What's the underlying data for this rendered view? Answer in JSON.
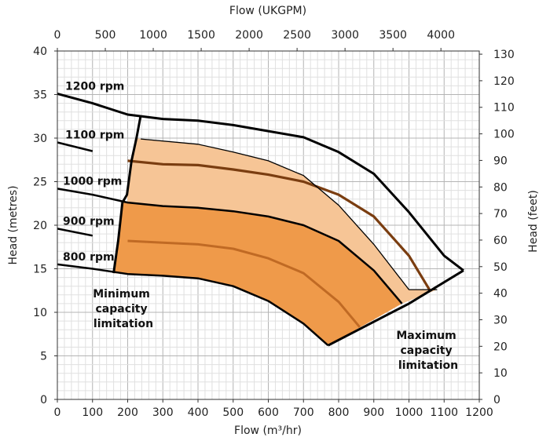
{
  "chart_data": {
    "type": "line",
    "title": "",
    "x_bottom": {
      "label": "Flow (m³/hr)",
      "range": [
        0,
        1200
      ],
      "ticks": [
        0,
        100,
        200,
        300,
        400,
        500,
        600,
        700,
        800,
        900,
        1000,
        1100,
        1200
      ]
    },
    "x_top": {
      "label": "Flow (UKGPM)",
      "range": [
        0,
        4400
      ],
      "ticks": [
        0,
        500,
        1000,
        1500,
        2000,
        2500,
        3000,
        3500,
        4000
      ]
    },
    "y_left": {
      "label": "Head (metres)",
      "range": [
        0,
        40
      ],
      "ticks": [
        0,
        5,
        10,
        15,
        20,
        25,
        30,
        35,
        40
      ]
    },
    "y_right": {
      "label": "Head (feet)",
      "range": [
        0,
        131.2
      ],
      "ticks": [
        0,
        10,
        20,
        30,
        40,
        50,
        60,
        70,
        80,
        90,
        100,
        110,
        120,
        130
      ]
    },
    "grid": true,
    "series": [
      {
        "name": "1200 rpm",
        "x": [
          0,
          100,
          200,
          300,
          400,
          500,
          600,
          700,
          800,
          900,
          1000,
          1100,
          1155
        ],
        "y": [
          35.1,
          34.0,
          32.7,
          32.2,
          32.0,
          31.5,
          30.8,
          30.1,
          28.4,
          25.9,
          21.5,
          16.5,
          14.8
        ]
      },
      {
        "name": "1100 rpm",
        "x": [
          0,
          100,
          200,
          300,
          400,
          500,
          600,
          700,
          800,
          900,
          1000,
          1060
        ],
        "y": [
          29.5,
          28.5,
          27.4,
          27.0,
          26.9,
          26.4,
          25.8,
          25.0,
          23.5,
          21.0,
          16.5,
          12.5
        ]
      },
      {
        "name": "1000 rpm",
        "x": [
          0,
          100,
          200,
          300,
          400,
          500,
          600,
          700,
          800,
          900,
          980
        ],
        "y": [
          24.2,
          23.5,
          22.6,
          22.2,
          22.0,
          21.6,
          21.0,
          20.0,
          18.2,
          14.8,
          11.0
        ]
      },
      {
        "name": "900 rpm",
        "x": [
          0,
          100,
          200,
          300,
          400,
          500,
          600,
          700,
          800,
          860
        ],
        "y": [
          19.6,
          18.8,
          18.2,
          18.0,
          17.8,
          17.3,
          16.2,
          14.5,
          11.2,
          8.3
        ]
      },
      {
        "name": "800 rpm",
        "x": [
          0,
          100,
          200,
          300,
          400,
          500,
          600,
          700,
          770
        ],
        "y": [
          15.5,
          15.0,
          14.4,
          14.2,
          13.9,
          13.0,
          11.3,
          8.7,
          6.2
        ]
      }
    ],
    "boundaries": {
      "minimum_capacity": {
        "x": [
          160,
          173,
          185,
          198,
          211,
          225,
          237
        ],
        "y": [
          14.5,
          18.2,
          22.6,
          23.5,
          27.4,
          30.0,
          32.6
        ]
      },
      "maximum_capacity": {
        "x": [
          770,
          1000,
          1155
        ],
        "y": [
          6.2,
          11.0,
          14.8
        ]
      },
      "upper_limit": {
        "x": [
          237,
          400,
          500,
          600,
          700,
          800,
          900,
          1000,
          1080
        ],
        "y": [
          29.9,
          29.3,
          28.4,
          27.4,
          25.7,
          22.3,
          17.8,
          12.6,
          12.6
        ]
      }
    },
    "annotations": [
      {
        "text_lines": [
          "Minimum",
          "capacity",
          "limitation"
        ]
      },
      {
        "text_lines": [
          "Maximum",
          "capacity",
          "limitation"
        ]
      }
    ],
    "colors": {
      "upper_band": "#f6c596",
      "lower_band": "#ef9a4a",
      "mid_curve": "#7a3d10",
      "lower_curve": "#c06a24",
      "outline": "#000000",
      "grid_minor": "#e0e0e0",
      "grid_major": "#b4b4b4"
    }
  }
}
